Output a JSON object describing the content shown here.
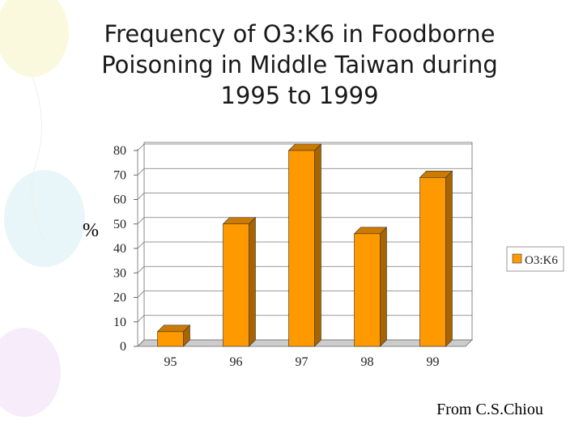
{
  "chart_data": {
    "type": "bar3d",
    "title_lines": [
      "Frequency of O3:K6 in Foodborne",
      "Poisoning in Middle Taiwan during",
      "1995 to 1999"
    ],
    "y_label": "%",
    "categories": [
      "95",
      "96",
      "97",
      "98",
      "99"
    ],
    "series": [
      {
        "name": "O3:K6",
        "color": "#ff9900",
        "values": [
          6,
          50,
          80,
          46,
          69
        ]
      }
    ],
    "ylim": [
      0,
      80
    ],
    "yticks": [
      0,
      10,
      20,
      30,
      40,
      50,
      60,
      70,
      80
    ],
    "grid": true,
    "legend": "right",
    "source": "From C.S.Chiou"
  }
}
